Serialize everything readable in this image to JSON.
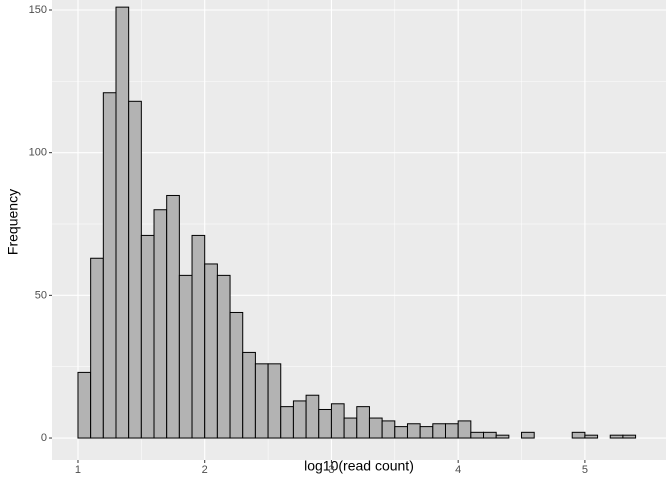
{
  "chart_data": {
    "type": "histogram",
    "x_label": "log10(read count)",
    "y_label": "Frequency",
    "bins": [
      1,
      1.1,
      1.2,
      1.3,
      1.4,
      1.5,
      1.6,
      1.7,
      1.8,
      1.9,
      2,
      2.1,
      2.2,
      2.3,
      2.4,
      2.5,
      2.6,
      2.7,
      2.8,
      2.9,
      3,
      3.1,
      3.2,
      3.3,
      3.4,
      3.5,
      3.6,
      3.7,
      3.8,
      3.9,
      4,
      4.1,
      4.2,
      4.3,
      4.4,
      4.5,
      4.6,
      4.7,
      4.8,
      4.9,
      5,
      5.1,
      5.2,
      5.3,
      5.4
    ],
    "values": [
      23,
      63,
      121,
      151,
      118,
      71,
      80,
      85,
      57,
      71,
      61,
      57,
      44,
      30,
      26,
      26,
      11,
      13,
      15,
      10,
      12,
      7,
      11,
      7,
      6,
      4,
      5,
      4,
      5,
      5,
      6,
      2,
      2,
      1,
      0,
      2,
      0,
      0,
      0,
      2,
      1,
      0,
      1,
      1
    ],
    "color": "#b3b3b3",
    "edge_color": "#000000",
    "xlim": [
      0.795,
      5.64
    ],
    "ylim": [
      -7.7,
      153.5
    ],
    "xticks": [
      1,
      2,
      3,
      4,
      5
    ],
    "yticks": [
      0,
      50,
      100,
      150
    ],
    "grid": true,
    "minor_grid": true
  }
}
